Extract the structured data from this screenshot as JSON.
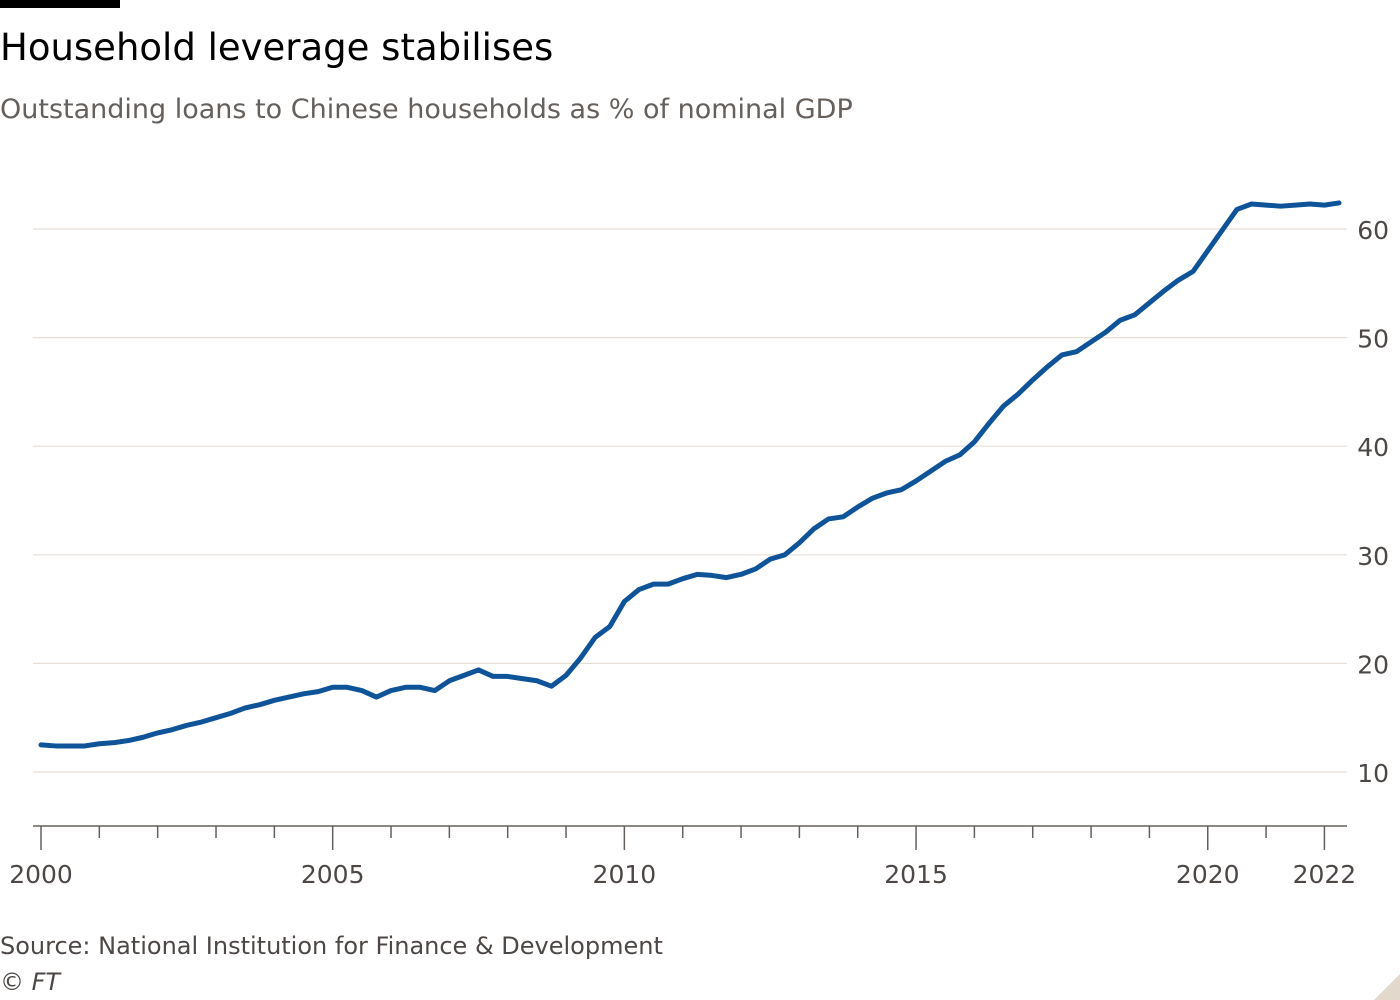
{
  "header": {
    "title": "Household leverage stabilises",
    "subtitle": "Outstanding loans to Chinese households as % of nominal GDP"
  },
  "footer": {
    "source": "Source: National Institution for Finance & Development",
    "credit": "© FT"
  },
  "colors": {
    "line": "#0f5499",
    "grid": "#e6dfd6",
    "axis": "#66605c",
    "tick_text": "#4d4845"
  },
  "chart_data": {
    "type": "line",
    "title": "Household leverage stabilises",
    "subtitle": "Outstanding loans to Chinese households as % of nominal GDP",
    "xlabel": "",
    "ylabel": "",
    "x_axis": "year (quarterly observations)",
    "xlim": [
      2000,
      2022.25
    ],
    "ylim": [
      5,
      64
    ],
    "y_ticks": [
      10,
      20,
      30,
      40,
      50,
      60
    ],
    "x_tick_labels": [
      "2000",
      "2005",
      "2010",
      "2015",
      "2020",
      "2022"
    ],
    "y_axis_position": "right",
    "grid": true,
    "legend": "none",
    "series": [
      {
        "x": [
          2000.0,
          2000.25,
          2000.5,
          2000.75,
          2001.0,
          2001.25,
          2001.5,
          2001.75,
          2002.0,
          2002.25,
          2002.5,
          2002.75,
          2003.0,
          2003.25,
          2003.5,
          2003.75,
          2004.0,
          2004.25,
          2004.5,
          2004.75,
          2005.0,
          2005.25,
          2005.5,
          2005.75,
          2006.0,
          2006.25,
          2006.5,
          2006.75,
          2007.0,
          2007.25,
          2007.5,
          2007.75,
          2008.0,
          2008.25,
          2008.5,
          2008.75,
          2009.0,
          2009.25,
          2009.5,
          2009.75,
          2010.0,
          2010.25,
          2010.5,
          2010.75,
          2011.0,
          2011.25,
          2011.5,
          2011.75,
          2012.0,
          2012.25,
          2012.5,
          2012.75,
          2013.0,
          2013.25,
          2013.5,
          2013.75,
          2014.0,
          2014.25,
          2014.5,
          2014.75,
          2015.0,
          2015.25,
          2015.5,
          2015.75,
          2016.0,
          2016.25,
          2016.5,
          2016.75,
          2017.0,
          2017.25,
          2017.5,
          2017.75,
          2018.0,
          2018.25,
          2018.5,
          2018.75,
          2019.0,
          2019.25,
          2019.5,
          2019.75,
          2020.0,
          2020.25,
          2020.5,
          2020.75,
          2021.0,
          2021.25,
          2021.5,
          2021.75,
          2022.0,
          2022.25
        ],
        "values": [
          12.5,
          12.4,
          12.4,
          12.4,
          12.6,
          12.7,
          12.9,
          13.2,
          13.6,
          13.9,
          14.3,
          14.6,
          15.0,
          15.4,
          15.9,
          16.2,
          16.6,
          16.9,
          17.2,
          17.4,
          17.8,
          17.8,
          17.5,
          16.9,
          17.5,
          17.8,
          17.8,
          17.5,
          18.4,
          18.9,
          19.4,
          18.8,
          18.8,
          18.6,
          18.4,
          17.9,
          18.9,
          20.5,
          22.4,
          23.4,
          25.7,
          26.8,
          27.3,
          27.3,
          27.8,
          28.2,
          28.1,
          27.9,
          28.2,
          28.7,
          29.6,
          30.0,
          31.1,
          32.4,
          33.3,
          33.5,
          34.4,
          35.2,
          35.7,
          36.0,
          36.8,
          37.7,
          38.6,
          39.2,
          40.4,
          42.1,
          43.7,
          44.8,
          46.1,
          47.3,
          48.4,
          48.7,
          49.6,
          50.5,
          51.6,
          52.1,
          53.2,
          54.3,
          55.3,
          56.1,
          58.0,
          59.9,
          61.8,
          62.3,
          62.2,
          62.1,
          62.2,
          62.3,
          62.2,
          62.4
        ]
      }
    ]
  }
}
